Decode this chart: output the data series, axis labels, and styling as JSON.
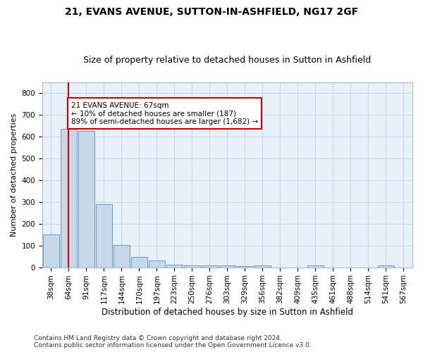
{
  "title1": "21, EVANS AVENUE, SUTTON-IN-ASHFIELD, NG17 2GF",
  "title2": "Size of property relative to detached houses in Sutton in Ashfield",
  "xlabel": "Distribution of detached houses by size in Sutton in Ashfield",
  "ylabel": "Number of detached properties",
  "categories": [
    "38sqm",
    "64sqm",
    "91sqm",
    "117sqm",
    "144sqm",
    "170sqm",
    "197sqm",
    "223sqm",
    "250sqm",
    "276sqm",
    "303sqm",
    "329sqm",
    "356sqm",
    "382sqm",
    "409sqm",
    "435sqm",
    "461sqm",
    "488sqm",
    "514sqm",
    "541sqm",
    "567sqm"
  ],
  "values": [
    150,
    635,
    625,
    290,
    103,
    46,
    30,
    12,
    10,
    8,
    8,
    6,
    8,
    0,
    0,
    8,
    0,
    0,
    0,
    8,
    0
  ],
  "bar_color": "#c8d8e8",
  "bar_edge_color": "#6699cc",
  "property_line_color": "#cc0000",
  "annotation_text": "21 EVANS AVENUE: 67sqm\n← 10% of detached houses are smaller (187)\n89% of semi-detached houses are larger (1,682) →",
  "annotation_box_color": "#ffffff",
  "annotation_box_edge": "#cc0000",
  "ylim": [
    0,
    850
  ],
  "yticks": [
    0,
    100,
    200,
    300,
    400,
    500,
    600,
    700,
    800
  ],
  "grid_color": "#c8d8e8",
  "bg_color": "#e8f0f8",
  "footer": "Contains HM Land Registry data © Crown copyright and database right 2024.\nContains public sector information licensed under the Open Government Licence v3.0.",
  "title1_fontsize": 10,
  "title2_fontsize": 9,
  "xlabel_fontsize": 8.5,
  "ylabel_fontsize": 8,
  "tick_fontsize": 7.5,
  "annotation_fontsize": 7.5,
  "footer_fontsize": 6.5
}
